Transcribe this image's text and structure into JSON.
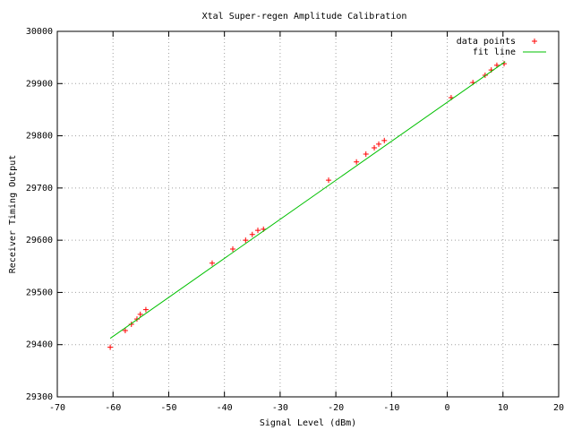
{
  "chart_data": {
    "type": "scatter",
    "title": "Xtal Super-regen Amplitude Calibration",
    "xlabel": "Signal Level (dBm)",
    "ylabel": "Receiver Timing Output",
    "xlim": [
      -70,
      20
    ],
    "xticks": [
      -70,
      -60,
      -50,
      -40,
      -30,
      -20,
      -10,
      0,
      10,
      20
    ],
    "ylim": [
      29300,
      30000
    ],
    "yticks": [
      29300,
      29400,
      29500,
      29600,
      29700,
      29800,
      29900,
      30000
    ],
    "grid": true,
    "legend": "top-right",
    "series": [
      {
        "name": "data points",
        "mode": "points",
        "color": "#ff0000",
        "x": [
          -60.5,
          -57.8,
          -56.7,
          -55.7,
          -55.1,
          -54.1,
          -42.2,
          -38.5,
          -36.2,
          -35.0,
          -34.0,
          -33.0,
          -21.3,
          -16.3,
          -14.6,
          -13.1,
          -12.3,
          -11.3,
          0.7,
          4.6,
          6.8,
          7.9,
          8.9,
          10.2
        ],
        "values": [
          29395,
          29427,
          29439,
          29449,
          29458,
          29467,
          29556,
          29583,
          29600,
          29611,
          29619,
          29621,
          29715,
          29750,
          29765,
          29777,
          29784,
          29791,
          29873,
          29902,
          29916,
          29926,
          29935,
          29938
        ]
      },
      {
        "name": "fit line",
        "mode": "line",
        "color": "#00c000",
        "x": [
          -60.5,
          10.4
        ],
        "values": [
          29412,
          29942
        ]
      }
    ]
  }
}
